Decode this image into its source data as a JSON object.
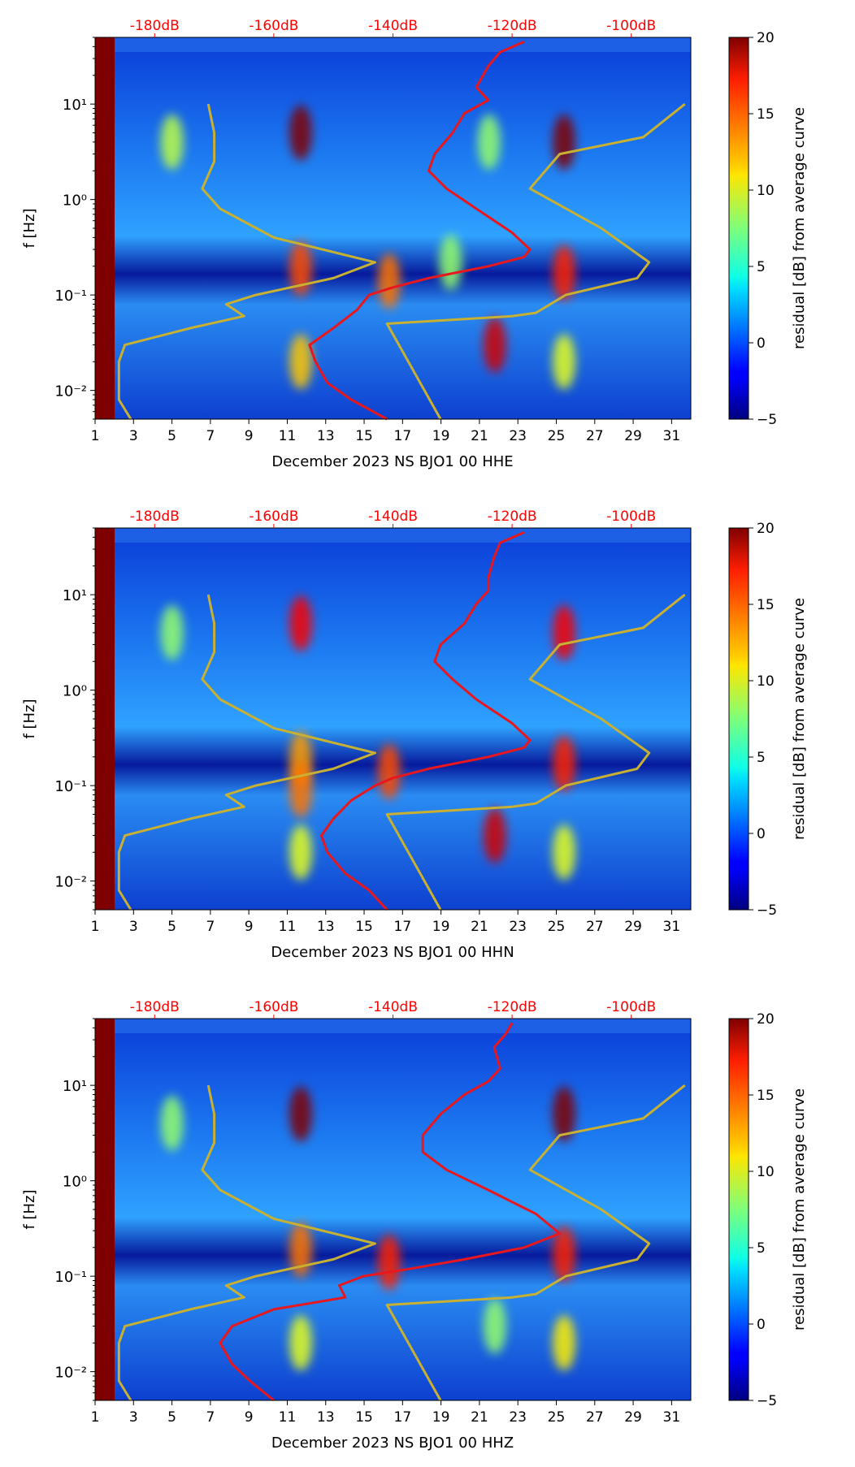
{
  "chart_data": [
    {
      "type": "heatmap",
      "xlabel": "December 2023 NS BJO1 00 HHE",
      "ylabel": "f [Hz]",
      "x_ticks": [
        "1",
        "3",
        "5",
        "7",
        "9",
        "11",
        "13",
        "15",
        "17",
        "19",
        "21",
        "23",
        "25",
        "27",
        "29",
        "31"
      ],
      "x_range": [
        1,
        32
      ],
      "y_ticks": [
        "10⁻²",
        "10⁻¹",
        "10⁰",
        "10¹"
      ],
      "y_range": [
        0.005,
        50
      ],
      "top_ticks": [
        "-180dB",
        "-160dB",
        "-140dB",
        "-120dB",
        "-100dB"
      ],
      "top_range": [
        -190,
        -90
      ],
      "colorbar": {
        "label": "residual [dB] from average curve",
        "ticks": [
          "−5",
          "0",
          "5",
          "10",
          "15",
          "20"
        ],
        "range": [
          -5,
          20
        ]
      },
      "hotspots": [
        {
          "day": 11.7,
          "f": 5,
          "value": 20
        },
        {
          "day": 25.4,
          "f": 4,
          "value": 20
        },
        {
          "day": 21.8,
          "f": 0.03,
          "value": 18
        },
        {
          "day": 11.7,
          "f": 0.02,
          "value": 12
        },
        {
          "day": 25.4,
          "f": 0.02,
          "value": 10
        },
        {
          "day": 5.0,
          "f": 4,
          "value": 9
        },
        {
          "day": 21.5,
          "f": 4,
          "value": 8
        },
        {
          "day": 11.7,
          "f": 0.19,
          "value": 15
        },
        {
          "day": 25.4,
          "f": 0.17,
          "value": 16
        },
        {
          "day": 16.3,
          "f": 0.14,
          "value": 14
        },
        {
          "day": 19.5,
          "f": 0.22,
          "value": 8
        }
      ],
      "series": [
        {
          "name": "average spectrum",
          "color": "#e8171e",
          "points": [
            {
              "f": 0.005,
              "dB": -141
            },
            {
              "f": 0.008,
              "dB": -147
            },
            {
              "f": 0.012,
              "dB": -151
            },
            {
              "f": 0.02,
              "dB": -153
            },
            {
              "f": 0.03,
              "dB": -154
            },
            {
              "f": 0.045,
              "dB": -150
            },
            {
              "f": 0.07,
              "dB": -146
            },
            {
              "f": 0.1,
              "dB": -144
            },
            {
              "f": 0.12,
              "dB": -140
            },
            {
              "f": 0.15,
              "dB": -134
            },
            {
              "f": 0.2,
              "dB": -124
            },
            {
              "f": 0.25,
              "dB": -118
            },
            {
              "f": 0.3,
              "dB": -117
            },
            {
              "f": 0.45,
              "dB": -120
            },
            {
              "f": 0.8,
              "dB": -126
            },
            {
              "f": 1.3,
              "dB": -131
            },
            {
              "f": 2,
              "dB": -134
            },
            {
              "f": 3,
              "dB": -133
            },
            {
              "f": 5,
              "dB": -130
            },
            {
              "f": 8,
              "dB": -128
            },
            {
              "f": 11,
              "dB": -124
            },
            {
              "f": 15,
              "dB": -126
            },
            {
              "f": 25,
              "dB": -124
            },
            {
              "f": 35,
              "dB": -122
            },
            {
              "f": 45,
              "dB": -118
            }
          ]
        },
        {
          "name": "noise model",
          "color": "#c8b032",
          "points": [
            {
              "f": 0.005,
              "dB": -184
            },
            {
              "f": 0.008,
              "dB": -186
            },
            {
              "f": 0.012,
              "dB": -186
            },
            {
              "f": 0.02,
              "dB": -186
            },
            {
              "f": 0.03,
              "dB": -185
            },
            {
              "f": 0.045,
              "dB": -174
            },
            {
              "f": 0.06,
              "dB": -165
            },
            {
              "f": 0.08,
              "dB": -168
            },
            {
              "f": 0.1,
              "dB": -163
            },
            {
              "f": 0.15,
              "dB": -150
            },
            {
              "f": 0.22,
              "dB": -143
            },
            {
              "f": 0.4,
              "dB": -160
            },
            {
              "f": 0.8,
              "dB": -169
            },
            {
              "f": 1.3,
              "dB": -172
            },
            {
              "f": 2.5,
              "dB": -170
            },
            {
              "f": 5,
              "dB": -170
            },
            {
              "f": 10,
              "dB": -171
            }
          ]
        },
        {
          "name": "noise model",
          "color": "#c8b032",
          "points": [
            {
              "f": 0.005,
              "dB": -132
            },
            {
              "f": 0.05,
              "dB": -141
            },
            {
              "f": 0.06,
              "dB": -120
            },
            {
              "f": 0.065,
              "dB": -116
            },
            {
              "f": 0.1,
              "dB": -111
            },
            {
              "f": 0.15,
              "dB": -99
            },
            {
              "f": 0.22,
              "dB": -97
            },
            {
              "f": 0.5,
              "dB": -105
            },
            {
              "f": 1.3,
              "dB": -117
            },
            {
              "f": 3,
              "dB": -112
            },
            {
              "f": 4.5,
              "dB": -98
            },
            {
              "f": 10,
              "dB": -91
            }
          ]
        }
      ]
    },
    {
      "type": "heatmap",
      "xlabel": "December 2023 NS BJO1 00 HHN",
      "ylabel": "f [Hz]",
      "x_ticks": [
        "1",
        "3",
        "5",
        "7",
        "9",
        "11",
        "13",
        "15",
        "17",
        "19",
        "21",
        "23",
        "25",
        "27",
        "29",
        "31"
      ],
      "x_range": [
        1,
        32
      ],
      "y_ticks": [
        "10⁻²",
        "10⁻¹",
        "10⁰",
        "10¹"
      ],
      "y_range": [
        0.005,
        50
      ],
      "top_ticks": [
        "-180dB",
        "-160dB",
        "-140dB",
        "-120dB",
        "-100dB"
      ],
      "top_range": [
        -190,
        -90
      ],
      "colorbar": {
        "label": "residual [dB] from average curve",
        "ticks": [
          "−5",
          "0",
          "5",
          "10",
          "15",
          "20"
        ],
        "range": [
          -5,
          20
        ]
      },
      "hotspots": [
        {
          "day": 11.7,
          "f": 5,
          "value": 17
        },
        {
          "day": 25.4,
          "f": 4,
          "value": 17
        },
        {
          "day": 21.8,
          "f": 0.03,
          "value": 18
        },
        {
          "day": 11.7,
          "f": 0.02,
          "value": 10
        },
        {
          "day": 25.4,
          "f": 0.02,
          "value": 10
        },
        {
          "day": 5.0,
          "f": 4,
          "value": 8
        },
        {
          "day": 11.7,
          "f": 0.19,
          "value": 13
        },
        {
          "day": 25.4,
          "f": 0.17,
          "value": 16
        },
        {
          "day": 16.3,
          "f": 0.14,
          "value": 15
        },
        {
          "day": 11.7,
          "f": 0.09,
          "value": 14
        }
      ],
      "series": [
        {
          "name": "average spectrum",
          "color": "#e8171e",
          "points": [
            {
              "f": 0.005,
              "dB": -141
            },
            {
              "f": 0.008,
              "dB": -144
            },
            {
              "f": 0.012,
              "dB": -148
            },
            {
              "f": 0.02,
              "dB": -151
            },
            {
              "f": 0.03,
              "dB": -152
            },
            {
              "f": 0.045,
              "dB": -150
            },
            {
              "f": 0.07,
              "dB": -147
            },
            {
              "f": 0.1,
              "dB": -143
            },
            {
              "f": 0.12,
              "dB": -140
            },
            {
              "f": 0.15,
              "dB": -134
            },
            {
              "f": 0.2,
              "dB": -124
            },
            {
              "f": 0.25,
              "dB": -118
            },
            {
              "f": 0.3,
              "dB": -117
            },
            {
              "f": 0.45,
              "dB": -120
            },
            {
              "f": 0.8,
              "dB": -126
            },
            {
              "f": 1.3,
              "dB": -130
            },
            {
              "f": 2,
              "dB": -133
            },
            {
              "f": 3,
              "dB": -132
            },
            {
              "f": 5,
              "dB": -128
            },
            {
              "f": 8,
              "dB": -126
            },
            {
              "f": 11,
              "dB": -124
            },
            {
              "f": 15,
              "dB": -124
            },
            {
              "f": 25,
              "dB": -123
            },
            {
              "f": 35,
              "dB": -122
            },
            {
              "f": 45,
              "dB": -118
            }
          ]
        },
        {
          "name": "noise model",
          "color": "#c8b032",
          "points": [
            {
              "f": 0.005,
              "dB": -184
            },
            {
              "f": 0.008,
              "dB": -186
            },
            {
              "f": 0.012,
              "dB": -186
            },
            {
              "f": 0.02,
              "dB": -186
            },
            {
              "f": 0.03,
              "dB": -185
            },
            {
              "f": 0.045,
              "dB": -174
            },
            {
              "f": 0.06,
              "dB": -165
            },
            {
              "f": 0.08,
              "dB": -168
            },
            {
              "f": 0.1,
              "dB": -163
            },
            {
              "f": 0.15,
              "dB": -150
            },
            {
              "f": 0.22,
              "dB": -143
            },
            {
              "f": 0.4,
              "dB": -160
            },
            {
              "f": 0.8,
              "dB": -169
            },
            {
              "f": 1.3,
              "dB": -172
            },
            {
              "f": 2.5,
              "dB": -170
            },
            {
              "f": 5,
              "dB": -170
            },
            {
              "f": 10,
              "dB": -171
            }
          ]
        },
        {
          "name": "noise model",
          "color": "#c8b032",
          "points": [
            {
              "f": 0.005,
              "dB": -132
            },
            {
              "f": 0.05,
              "dB": -141
            },
            {
              "f": 0.06,
              "dB": -120
            },
            {
              "f": 0.065,
              "dB": -116
            },
            {
              "f": 0.1,
              "dB": -111
            },
            {
              "f": 0.15,
              "dB": -99
            },
            {
              "f": 0.22,
              "dB": -97
            },
            {
              "f": 0.5,
              "dB": -105
            },
            {
              "f": 1.3,
              "dB": -117
            },
            {
              "f": 3,
              "dB": -112
            },
            {
              "f": 4.5,
              "dB": -98
            },
            {
              "f": 10,
              "dB": -91
            }
          ]
        }
      ]
    },
    {
      "type": "heatmap",
      "xlabel": "December 2023 NS BJO1 00 HHZ",
      "ylabel": "f [Hz]",
      "x_ticks": [
        "1",
        "3",
        "5",
        "7",
        "9",
        "11",
        "13",
        "15",
        "17",
        "19",
        "21",
        "23",
        "25",
        "27",
        "29",
        "31"
      ],
      "x_range": [
        1,
        32
      ],
      "y_ticks": [
        "10⁻²",
        "10⁻¹",
        "10⁰",
        "10¹"
      ],
      "y_range": [
        0.005,
        50
      ],
      "top_ticks": [
        "-180dB",
        "-160dB",
        "-140dB",
        "-120dB",
        "-100dB"
      ],
      "top_range": [
        -190,
        -90
      ],
      "colorbar": {
        "label": "residual [dB] from average curve",
        "ticks": [
          "−5",
          "0",
          "5",
          "10",
          "15",
          "20"
        ],
        "range": [
          -5,
          20
        ]
      },
      "hotspots": [
        {
          "day": 11.7,
          "f": 5,
          "value": 20
        },
        {
          "day": 25.4,
          "f": 5,
          "value": 20
        },
        {
          "day": 11.7,
          "f": 0.02,
          "value": 10
        },
        {
          "day": 25.4,
          "f": 0.02,
          "value": 11
        },
        {
          "day": 5.0,
          "f": 4,
          "value": 8
        },
        {
          "day": 11.7,
          "f": 0.19,
          "value": 14
        },
        {
          "day": 25.4,
          "f": 0.17,
          "value": 16
        },
        {
          "day": 16.3,
          "f": 0.14,
          "value": 16
        },
        {
          "day": 21.8,
          "f": 0.03,
          "value": 8
        }
      ],
      "series": [
        {
          "name": "average spectrum",
          "color": "#e8171e",
          "points": [
            {
              "f": 0.005,
              "dB": -160
            },
            {
              "f": 0.008,
              "dB": -164
            },
            {
              "f": 0.012,
              "dB": -167
            },
            {
              "f": 0.02,
              "dB": -169
            },
            {
              "f": 0.03,
              "dB": -167
            },
            {
              "f": 0.045,
              "dB": -160
            },
            {
              "f": 0.06,
              "dB": -148
            },
            {
              "f": 0.08,
              "dB": -149
            },
            {
              "f": 0.1,
              "dB": -145
            },
            {
              "f": 0.12,
              "dB": -137
            },
            {
              "f": 0.15,
              "dB": -128
            },
            {
              "f": 0.2,
              "dB": -118
            },
            {
              "f": 0.28,
              "dB": -112
            },
            {
              "f": 0.45,
              "dB": -116
            },
            {
              "f": 0.8,
              "dB": -124
            },
            {
              "f": 1.3,
              "dB": -131
            },
            {
              "f": 2,
              "dB": -135
            },
            {
              "f": 3,
              "dB": -135
            },
            {
              "f": 5,
              "dB": -132
            },
            {
              "f": 8,
              "dB": -128
            },
            {
              "f": 11,
              "dB": -124
            },
            {
              "f": 15,
              "dB": -122
            },
            {
              "f": 25,
              "dB": -123
            },
            {
              "f": 35,
              "dB": -121
            },
            {
              "f": 45,
              "dB": -120
            }
          ]
        },
        {
          "name": "noise model",
          "color": "#c8b032",
          "points": [
            {
              "f": 0.005,
              "dB": -184
            },
            {
              "f": 0.008,
              "dB": -186
            },
            {
              "f": 0.012,
              "dB": -186
            },
            {
              "f": 0.02,
              "dB": -186
            },
            {
              "f": 0.03,
              "dB": -185
            },
            {
              "f": 0.045,
              "dB": -174
            },
            {
              "f": 0.06,
              "dB": -165
            },
            {
              "f": 0.08,
              "dB": -168
            },
            {
              "f": 0.1,
              "dB": -163
            },
            {
              "f": 0.15,
              "dB": -150
            },
            {
              "f": 0.22,
              "dB": -143
            },
            {
              "f": 0.4,
              "dB": -160
            },
            {
              "f": 0.8,
              "dB": -169
            },
            {
              "f": 1.3,
              "dB": -172
            },
            {
              "f": 2.5,
              "dB": -170
            },
            {
              "f": 5,
              "dB": -170
            },
            {
              "f": 10,
              "dB": -171
            }
          ]
        },
        {
          "name": "noise model",
          "color": "#c8b032",
          "points": [
            {
              "f": 0.005,
              "dB": -132
            },
            {
              "f": 0.05,
              "dB": -141
            },
            {
              "f": 0.06,
              "dB": -120
            },
            {
              "f": 0.065,
              "dB": -116
            },
            {
              "f": 0.1,
              "dB": -111
            },
            {
              "f": 0.15,
              "dB": -99
            },
            {
              "f": 0.22,
              "dB": -97
            },
            {
              "f": 0.5,
              "dB": -105
            },
            {
              "f": 1.3,
              "dB": -117
            },
            {
              "f": 3,
              "dB": -112
            },
            {
              "f": 4.5,
              "dB": -98
            },
            {
              "f": 10,
              "dB": -91
            }
          ]
        }
      ]
    }
  ]
}
